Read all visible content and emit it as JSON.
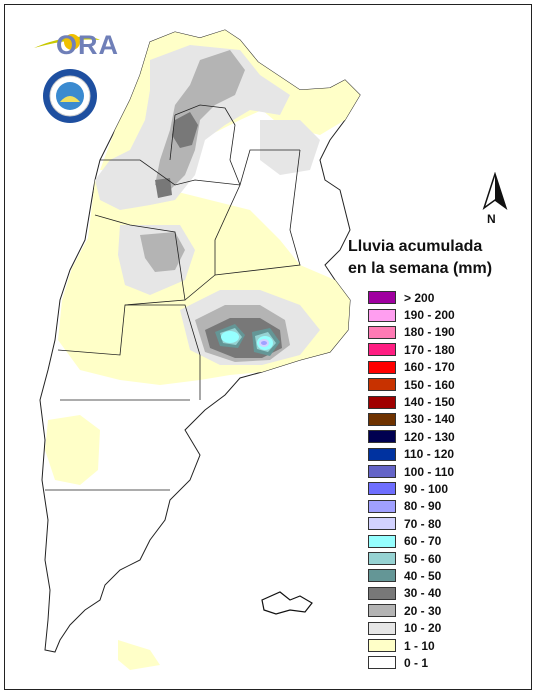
{
  "logo": {
    "text": "ORA",
    "seal_icon": "smn-seal-icon"
  },
  "north_arrow": {
    "label": "N"
  },
  "legend": {
    "title_line1": "Lluvia acumulada",
    "title_line2": "en la semana (mm)",
    "items": [
      {
        "label": "> 200",
        "color": "#a000a0"
      },
      {
        "label": "190 - 200",
        "color": "#ff9ef0"
      },
      {
        "label": "180 - 190",
        "color": "#ff7ab4"
      },
      {
        "label": "170 - 180",
        "color": "#ff1e82"
      },
      {
        "label": "160 - 170",
        "color": "#ff0000"
      },
      {
        "label": "150 - 160",
        "color": "#c83200"
      },
      {
        "label": "140 - 150",
        "color": "#a00000"
      },
      {
        "label": "130 - 140",
        "color": "#6e3200"
      },
      {
        "label": "120 - 130",
        "color": "#000050"
      },
      {
        "label": "110 - 120",
        "color": "#0032a0"
      },
      {
        "label": "100 - 110",
        "color": "#6464c8"
      },
      {
        "label": "90 - 100",
        "color": "#6e6eff"
      },
      {
        "label": "80 - 90",
        "color": "#a0a0ff"
      },
      {
        "label": "70 - 80",
        "color": "#d2d2ff"
      },
      {
        "label": "60 - 70",
        "color": "#96ffff"
      },
      {
        "label": "50 - 60",
        "color": "#96d2d2"
      },
      {
        "label": "40 - 50",
        "color": "#649696"
      },
      {
        "label": "30 - 40",
        "color": "#787878"
      },
      {
        "label": "20 - 30",
        "color": "#b4b4b4"
      },
      {
        "label": "10 - 20",
        "color": "#e6e6e6"
      },
      {
        "label": "1 - 10",
        "color": "#ffffc8"
      },
      {
        "label": "0 - 1",
        "color": "#ffffff"
      }
    ]
  }
}
